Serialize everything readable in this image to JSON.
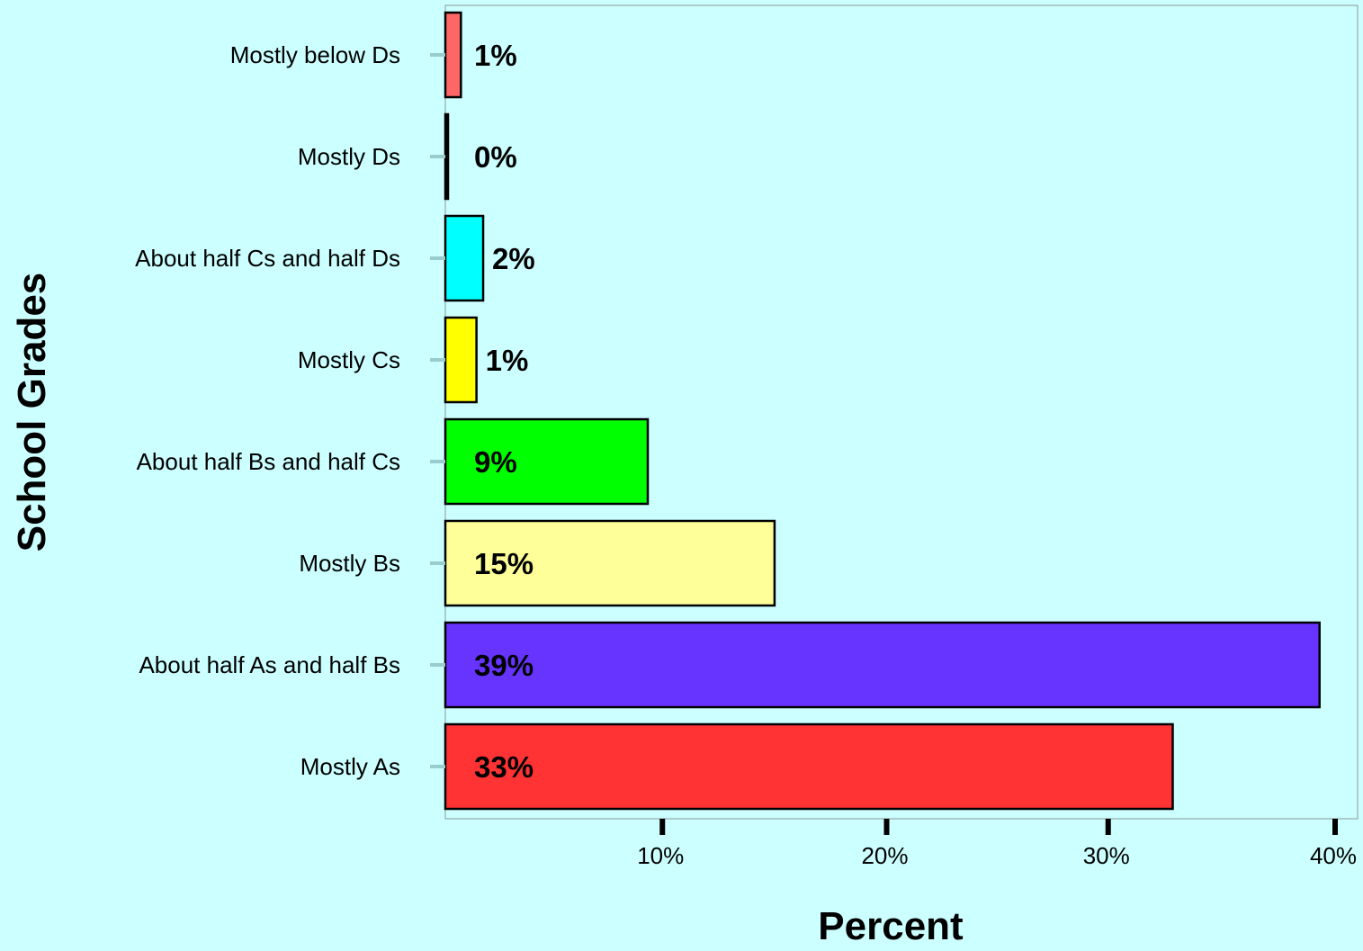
{
  "chart_data": {
    "type": "bar",
    "orientation": "horizontal",
    "xlabel": "Percent",
    "ylabel": "School Grades",
    "xlim": [
      0,
      40
    ],
    "xticks": [
      10,
      20,
      30,
      40
    ],
    "xtick_labels": [
      "10%",
      "20%",
      "30%",
      "40%"
    ],
    "grid": false,
    "background": "#ccffff",
    "categories": [
      "Mostly below Ds",
      "Mostly Ds",
      "About half Cs and half Ds",
      "Mostly Cs",
      "About half Bs and half Cs",
      "Mostly Bs",
      "About half As and half Bs",
      "Mostly As"
    ],
    "values": [
      0.7,
      0.1,
      1.7,
      1.4,
      9.1,
      14.8,
      39.3,
      32.7
    ],
    "value_labels": [
      "1%",
      "0%",
      "2%",
      "1%",
      "9%",
      "15%",
      "39%",
      "33%"
    ],
    "colors": [
      "#ff6666",
      "#000000",
      "#00ffff",
      "#ffff00",
      "#00ff00",
      "#ffff99",
      "#6633ff",
      "#ff3333"
    ]
  }
}
